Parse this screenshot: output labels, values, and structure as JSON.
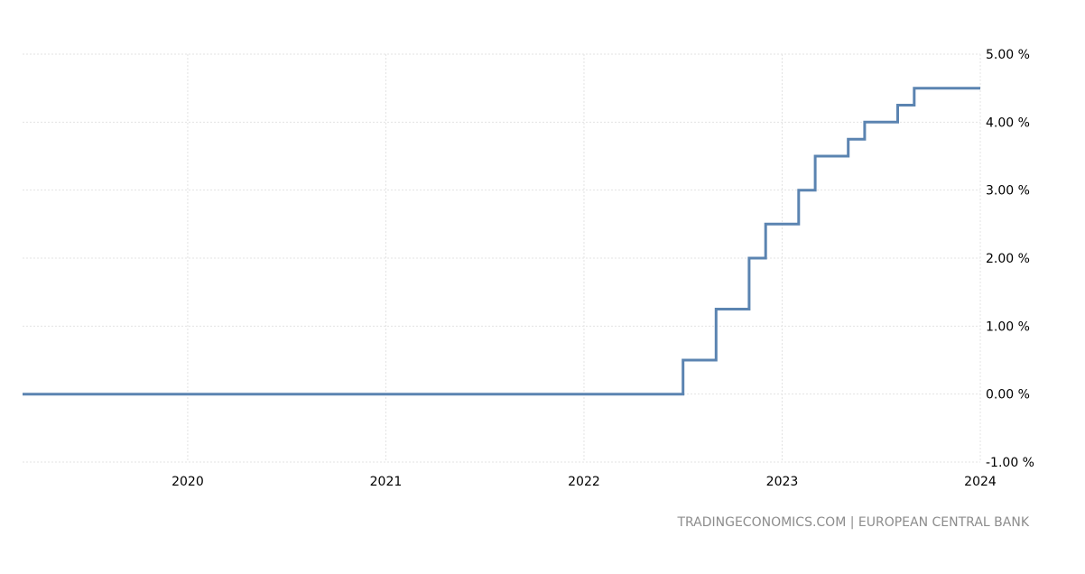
{
  "chart_data": {
    "type": "line",
    "step": true,
    "x_tick_labels": [
      "2020",
      "2021",
      "2022",
      "2023",
      "2024"
    ],
    "y_tick_labels": [
      "-1.00 %",
      "0.00 %",
      "1.00 %",
      "2.00 %",
      "3.00 %",
      "4.00 %",
      "5.00 %"
    ],
    "xlim": [
      "2019-03",
      "2024-01"
    ],
    "ylim": [
      -1,
      5
    ],
    "grid": true,
    "y_axis_side": "right",
    "series": [
      {
        "color": "#5b84b1",
        "points": [
          {
            "date": "2019-03",
            "value": 0.0
          },
          {
            "date": "2022-07",
            "value": 0.5
          },
          {
            "date": "2022-09",
            "value": 1.25
          },
          {
            "date": "2022-11",
            "value": 2.0
          },
          {
            "date": "2022-12",
            "value": 2.5
          },
          {
            "date": "2023-02",
            "value": 3.0
          },
          {
            "date": "2023-03",
            "value": 3.5
          },
          {
            "date": "2023-05",
            "value": 3.75
          },
          {
            "date": "2023-06",
            "value": 4.0
          },
          {
            "date": "2023-08",
            "value": 4.25
          },
          {
            "date": "2023-09",
            "value": 4.5
          },
          {
            "date": "2024-01",
            "value": 4.5
          }
        ]
      }
    ],
    "source": "TRADINGECONOMICS.COM | EUROPEAN CENTRAL BANK"
  }
}
